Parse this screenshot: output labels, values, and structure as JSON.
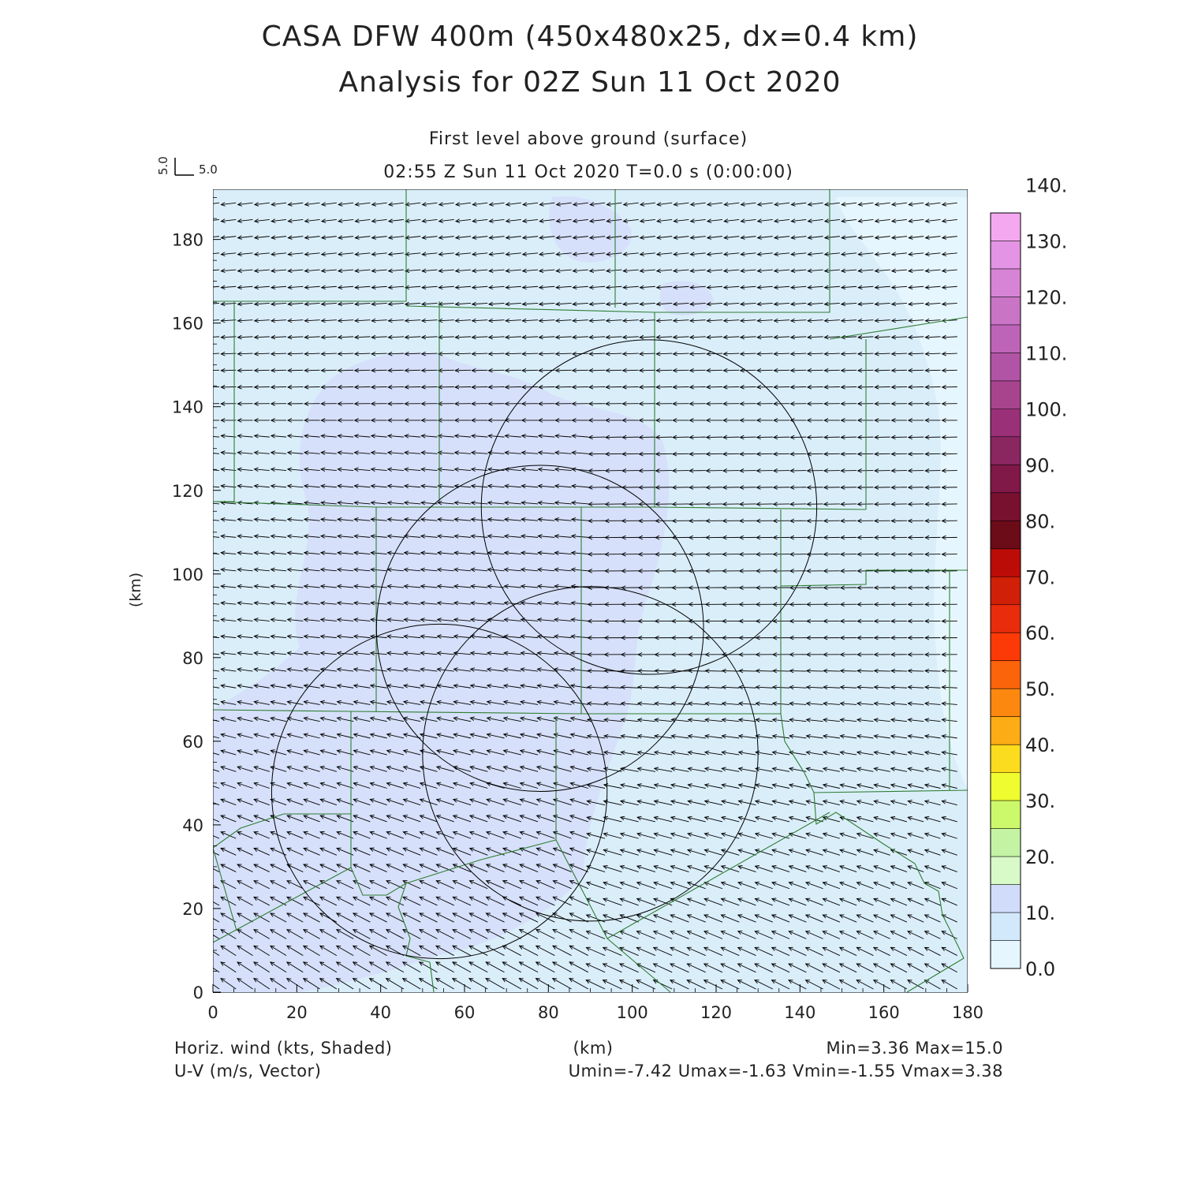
{
  "title": {
    "line1": "CASA DFW 400m (450x480x25, dx=0.4 km)",
    "line2": "Analysis for 02Z Sun 11 Oct 2020"
  },
  "subtitle": {
    "level": "First level above ground (surface)",
    "time": "02:55 Z Sun 11 Oct 2020    T=0.0 s (0:00:00)"
  },
  "reference_vector": {
    "u_label": "5.0",
    "v_label": "5.0"
  },
  "axes": {
    "x_label": "(km)",
    "y_label": "(km)",
    "x_ticks": [
      "0",
      "20",
      "40",
      "60",
      "80",
      "100",
      "120",
      "140",
      "160",
      "180"
    ],
    "y_ticks": [
      "0",
      "20",
      "40",
      "60",
      "80",
      "100",
      "120",
      "140",
      "160",
      "180"
    ],
    "xlim": [
      0,
      180
    ],
    "ylim": [
      0,
      192
    ]
  },
  "colorbar": {
    "labels": [
      "0.0",
      "10.",
      "20.",
      "30.",
      "40.",
      "50.",
      "60.",
      "70.",
      "80.",
      "90.",
      "100.",
      "110.",
      "120.",
      "130.",
      "140."
    ],
    "colors": [
      "#e6f6fe",
      "#d2e8fb",
      "#d0dcfa",
      "#d8f9c8",
      "#c4f3a4",
      "#ccf86c",
      "#eefc30",
      "#fcdc1e",
      "#fcac14",
      "#fc8810",
      "#fc640c",
      "#fc3a08",
      "#e82c0c",
      "#d02008",
      "#bc0c08",
      "#6c0c18",
      "#781030",
      "#801848",
      "#8a2660",
      "#9a3078",
      "#a8448e",
      "#b254a6",
      "#be64b8",
      "#ca74c6",
      "#d884d6",
      "#e494e4",
      "#f4a8f0"
    ]
  },
  "footer": {
    "left_line1": "Horiz. wind (kts, Shaded)",
    "left_line2": "U-V (m/s, Vector)",
    "center": "(km)",
    "right_line1": "Min=3.36  Max=15.0",
    "right_line2": "Umin=-7.42  Umax=-1.63  Vmin=-1.55  Vmax=3.38"
  },
  "map_data": {
    "radar_range_rings": [
      {
        "center": [
          104,
          116
        ],
        "radius": 40
      },
      {
        "center": [
          78,
          87
        ],
        "radius": 39
      },
      {
        "center": [
          90,
          57
        ],
        "radius": 40
      },
      {
        "center": [
          54,
          48
        ],
        "radius": 40
      }
    ],
    "vector_field": {
      "x_spacing_km": 4,
      "y_spacing_km": 4,
      "mean_u": -4.5,
      "mean_v": 0.3
    },
    "shading": {
      "background_color": "#daeefa",
      "higher_speed_color": "#d6e0fa",
      "low_speed_color": "#e6f6fe"
    },
    "county_line_color": "#2e7d32",
    "ring_color": "#000000"
  }
}
